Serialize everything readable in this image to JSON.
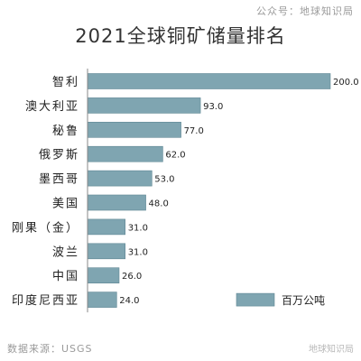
{
  "header": {
    "account": "公众号：地球知识局"
  },
  "footer": {
    "source": "数据来源：USGS",
    "wechat_mark": "地球知识局"
  },
  "chart_data": {
    "type": "bar",
    "orientation": "horizontal",
    "title": "2021全球铜矿储量排名",
    "categories": [
      "智利",
      "澳大利亚",
      "秘鲁",
      "俄罗斯",
      "墨西哥",
      "美国",
      "刚果（金）",
      "波兰",
      "中国",
      "印度尼西亚"
    ],
    "series": [
      {
        "name": "百万公吨",
        "values": [
          200.0,
          93.0,
          77.0,
          62.0,
          53.0,
          48.0,
          31.0,
          31.0,
          26.0,
          24.0
        ]
      }
    ],
    "value_labels": [
      "200.0",
      "93.0",
      "77.0",
      "62.0",
      "53.0",
      "48.0",
      "31.0",
      "31.0",
      "26.0",
      "24.0"
    ],
    "xlim": [
      0,
      200
    ],
    "grid": false,
    "legend_position": "bottom-right",
    "bar_color": "#7fa5b1",
    "bar_border_color": "#5f8794"
  }
}
